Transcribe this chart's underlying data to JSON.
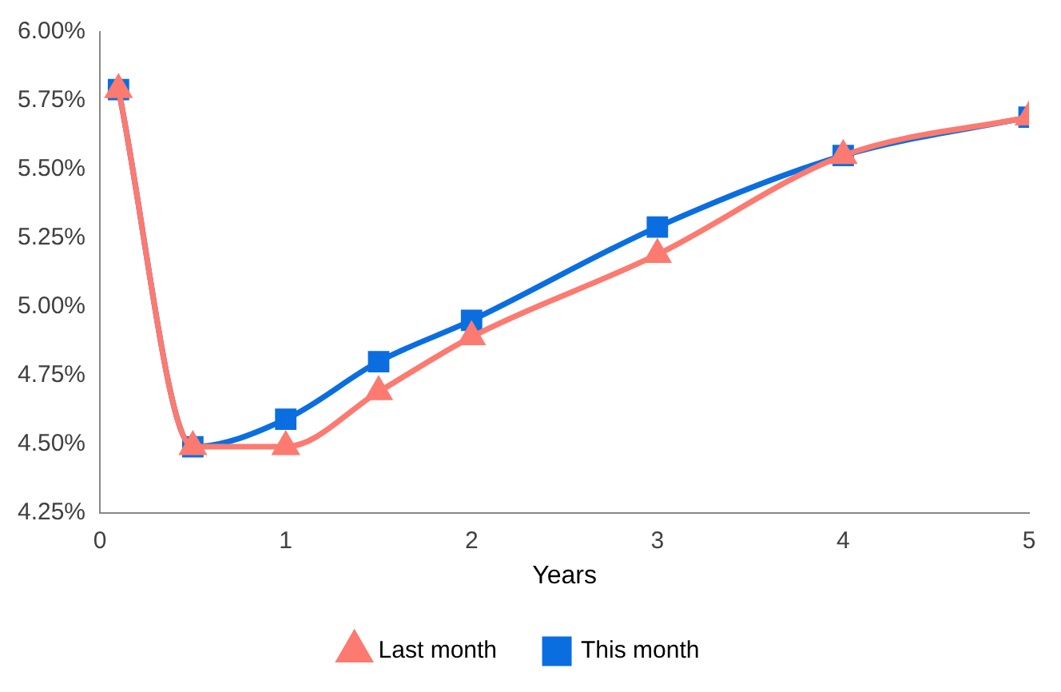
{
  "chart_data": {
    "type": "line",
    "xlabel": "Years",
    "x": [
      0.1,
      0.5,
      1,
      1.5,
      2,
      3,
      4,
      5
    ],
    "series": [
      {
        "name": "This month",
        "color": "#0a6ee0",
        "marker": "square",
        "values": [
          5.79,
          4.49,
          4.59,
          4.8,
          4.95,
          5.29,
          5.55,
          5.69
        ]
      },
      {
        "name": "Last month",
        "color": "#fc7a70",
        "marker": "triangle",
        "values": [
          5.79,
          4.49,
          4.49,
          4.69,
          4.89,
          5.19,
          5.55,
          5.69
        ]
      }
    ],
    "xlim": [
      0,
      5
    ],
    "xticks": [
      0,
      1,
      2,
      3,
      4,
      5
    ],
    "ylim": [
      4.25,
      6
    ],
    "yticks": [
      {
        "value": 4.25,
        "label": "4.25%"
      },
      {
        "value": 4.5,
        "label": "4.50%"
      },
      {
        "value": 4.75,
        "label": "4.75%"
      },
      {
        "value": 5,
        "label": "5.00%"
      },
      {
        "value": 5.25,
        "label": "5.25%"
      },
      {
        "value": 5.5,
        "label": "5.50%"
      },
      {
        "value": 5.75,
        "label": "5.75%"
      },
      {
        "value": 6,
        "label": "6.00%"
      }
    ],
    "grid": false,
    "legend": "bottom",
    "line_style": "solid"
  }
}
